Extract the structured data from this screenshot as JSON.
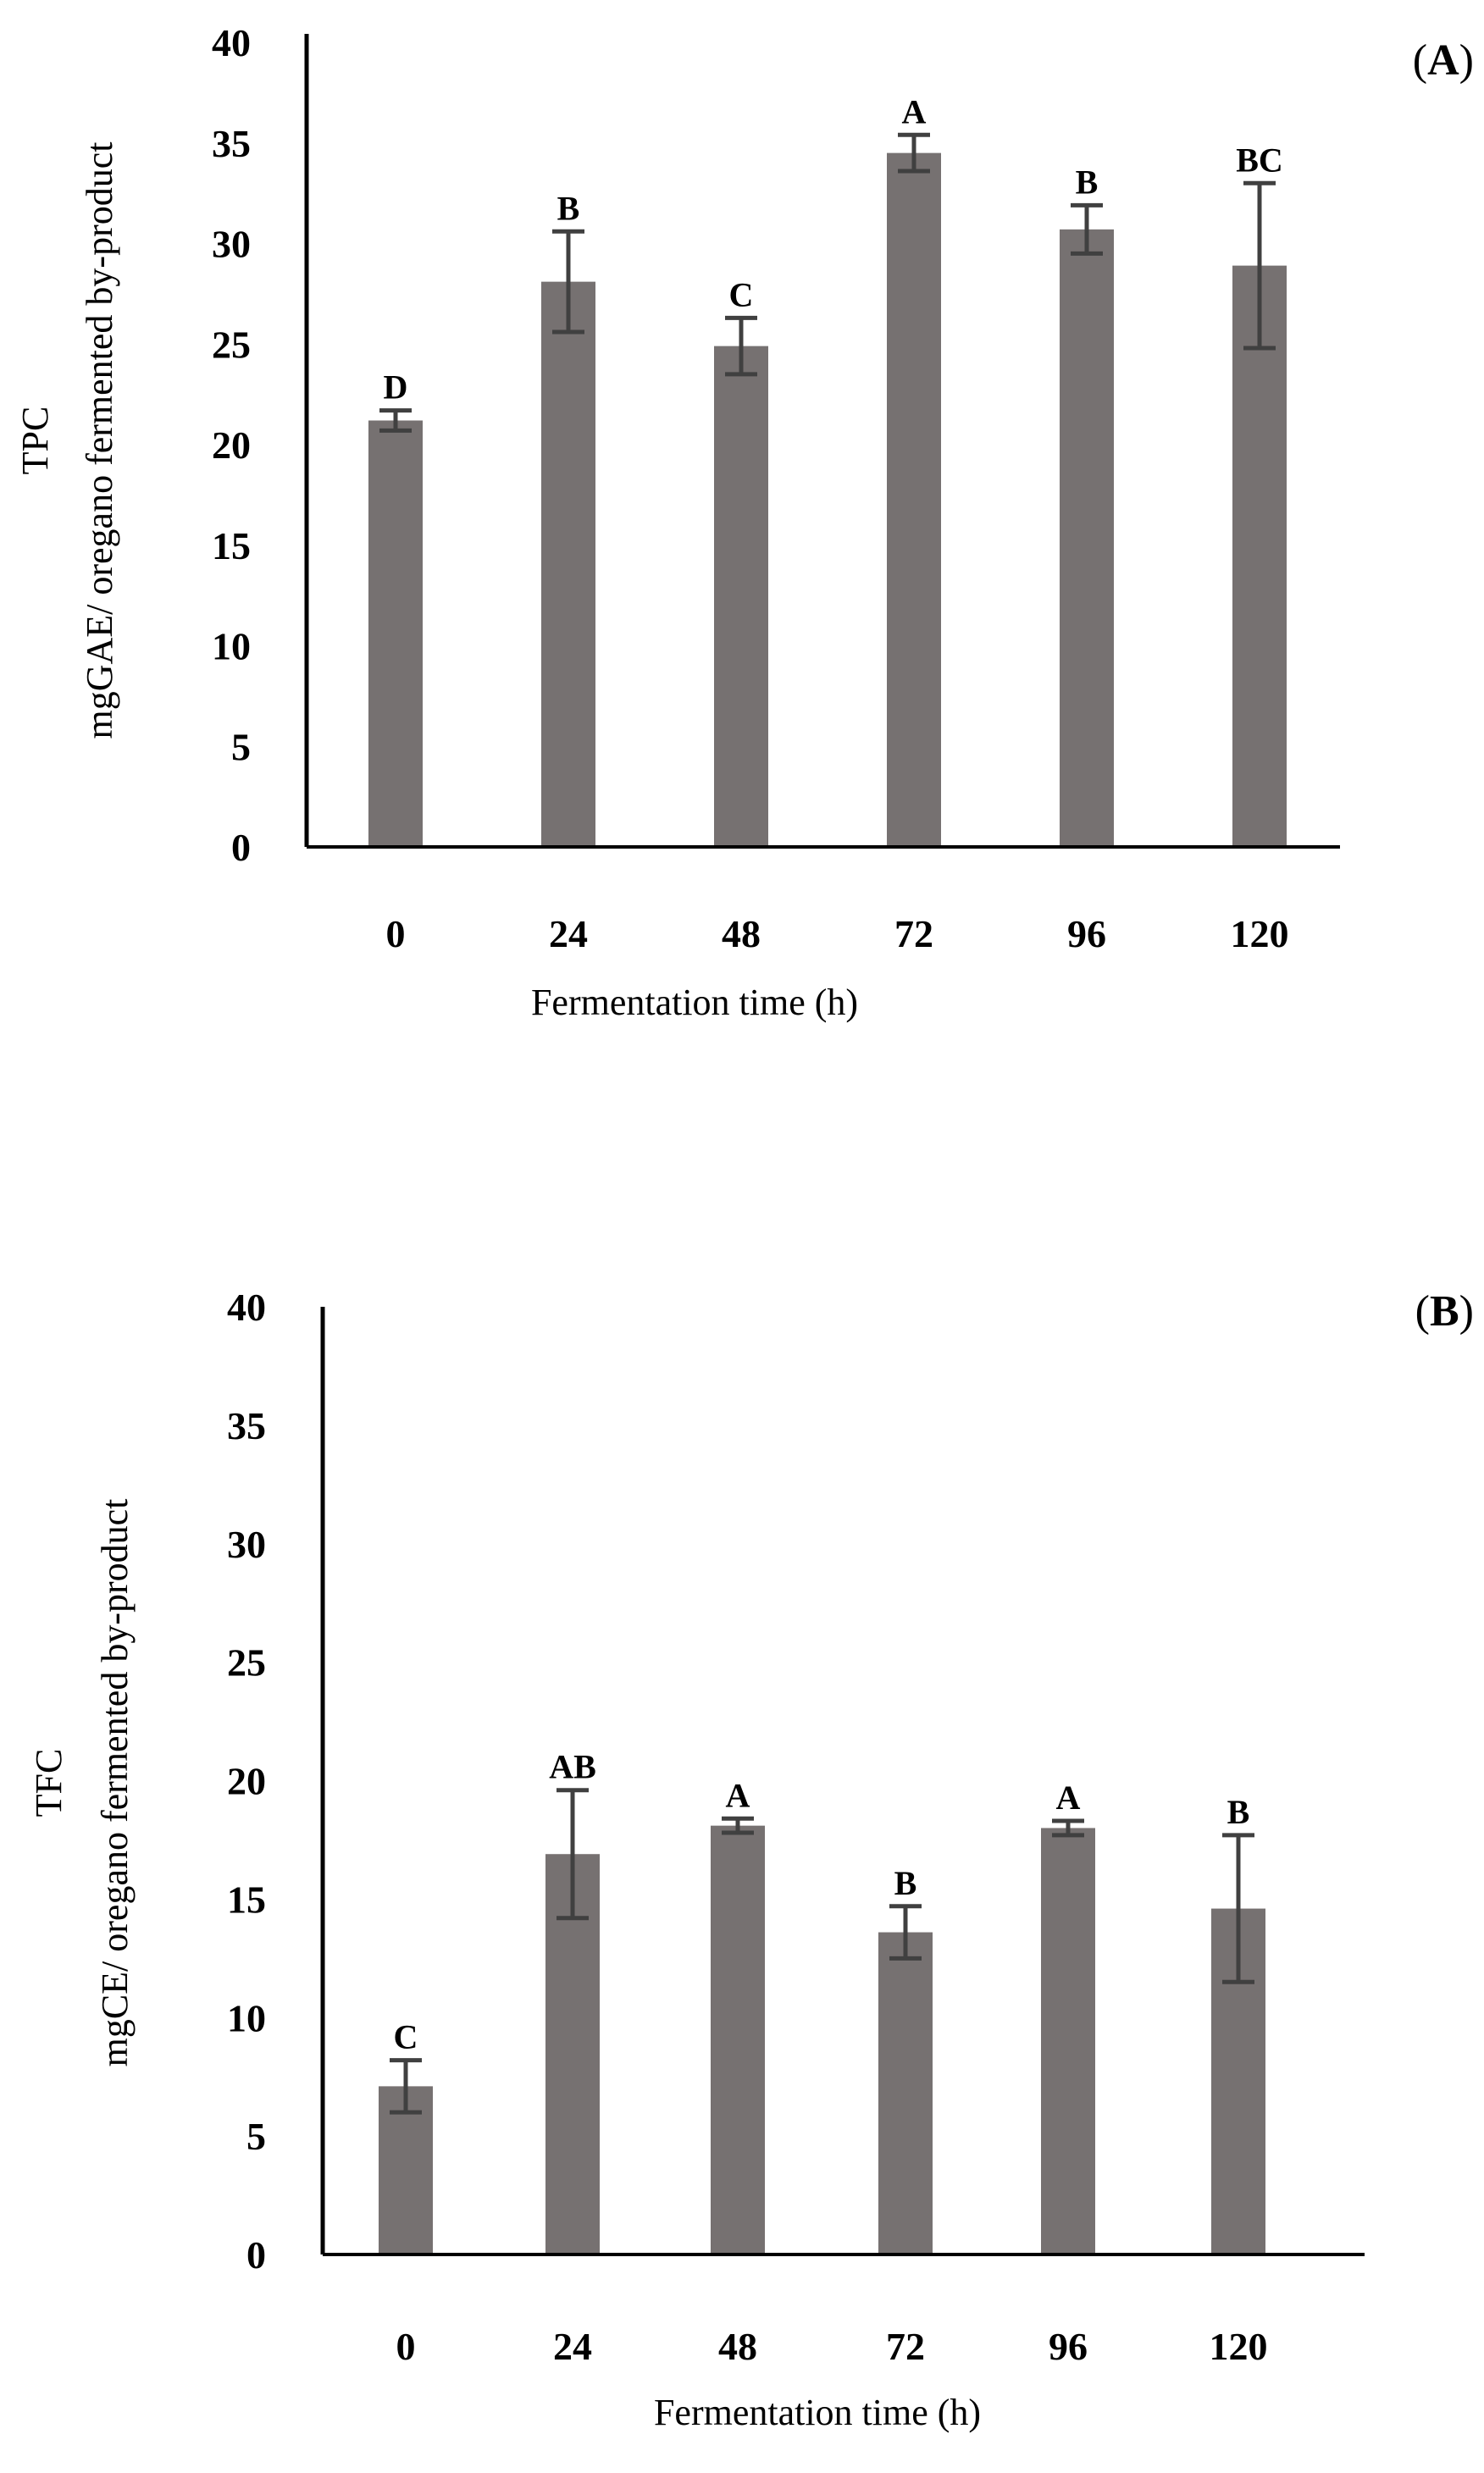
{
  "colors": {
    "bar": "#767171",
    "error_bar": "#404040",
    "axis": "#000000"
  },
  "chart_data": [
    {
      "type": "bar",
      "panel_label": {
        "open": "(",
        "letter": "A",
        "close": ")"
      },
      "categories": [
        "0",
        "24",
        "48",
        "72",
        "96",
        "120"
      ],
      "values": [
        21.2,
        28.1,
        24.9,
        34.5,
        30.7,
        28.9
      ],
      "errors": [
        0.5,
        2.5,
        1.4,
        0.9,
        1.2,
        4.1
      ],
      "significance_labels": [
        "D",
        "B",
        "C",
        "A",
        "B",
        "BC"
      ],
      "ylabel_line1": "TPC",
      "ylabel_line2": "mgGAE/ oregano fermented by-product",
      "xlabel": "Fermentation time (h)",
      "ylim": [
        0,
        40
      ],
      "yticks": [
        "0",
        "5",
        "10",
        "15",
        "20",
        "25",
        "30",
        "35",
        "40"
      ]
    },
    {
      "type": "bar",
      "panel_label": {
        "open": "(",
        "letter": "B",
        "close": ")"
      },
      "categories": [
        "0",
        "24",
        "48",
        "72",
        "96",
        "120"
      ],
      "values": [
        7.1,
        16.9,
        18.1,
        13.6,
        18.0,
        14.6
      ],
      "errors": [
        1.1,
        2.7,
        0.3,
        1.1,
        0.3,
        3.1
      ],
      "significance_labels": [
        "C",
        "AB",
        "A",
        "B",
        "A",
        "B"
      ],
      "ylabel_line1": "TFC",
      "ylabel_line2": "mgCE/ oregano fermented by-product",
      "xlabel": "Fermentation time (h)",
      "ylim": [
        0,
        40
      ],
      "yticks": [
        "0",
        "5",
        "10",
        "15",
        "20",
        "25",
        "30",
        "35",
        "40"
      ]
    }
  ]
}
